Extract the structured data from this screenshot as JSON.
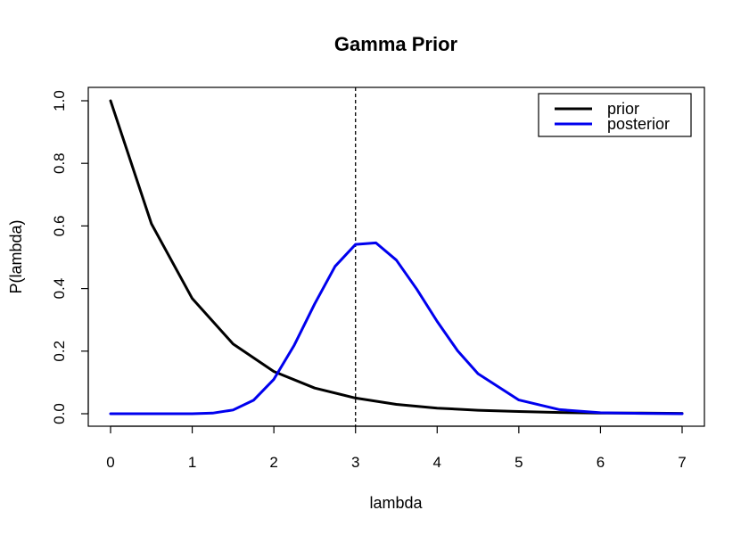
{
  "chart_data": {
    "type": "line",
    "title": "Gamma Prior",
    "xlabel": "lambda",
    "ylabel": "P(lambda)",
    "xlim": [
      0,
      7
    ],
    "ylim": [
      0,
      1.0
    ],
    "x_ticks": [
      "0",
      "1",
      "2",
      "3",
      "4",
      "5",
      "6",
      "7"
    ],
    "y_ticks": [
      "0.0",
      "0.2",
      "0.4",
      "0.6",
      "0.8",
      "1.0"
    ],
    "grid": false,
    "legend_position": "top-right",
    "vline": {
      "x": 3,
      "style": "dashed",
      "color": "#000000"
    },
    "series": [
      {
        "name": "prior",
        "color": "#000000",
        "x": [
          0,
          0.5,
          1,
          1.5,
          2,
          2.5,
          3,
          3.5,
          4,
          4.5,
          5,
          5.5,
          6,
          6.5,
          7
        ],
        "values": [
          1.0,
          0.607,
          0.368,
          0.223,
          0.135,
          0.082,
          0.05,
          0.03,
          0.018,
          0.011,
          0.007,
          0.004,
          0.002,
          0.002,
          0.001
        ]
      },
      {
        "name": "posterior",
        "color": "#0000ee",
        "x": [
          0,
          0.5,
          1,
          1.25,
          1.5,
          1.75,
          2,
          2.25,
          2.5,
          2.75,
          3,
          3.25,
          3.5,
          3.75,
          4,
          4.25,
          4.5,
          5,
          5.5,
          6,
          6.5,
          7
        ],
        "values": [
          0,
          0,
          0,
          0.002,
          0.012,
          0.043,
          0.11,
          0.219,
          0.351,
          0.471,
          0.541,
          0.546,
          0.491,
          0.398,
          0.295,
          0.201,
          0.128,
          0.044,
          0.013,
          0.003,
          0.001,
          0
        ]
      }
    ]
  }
}
